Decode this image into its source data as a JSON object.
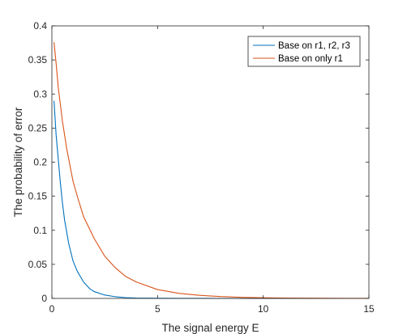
{
  "chart_data": {
    "type": "line",
    "title": "",
    "xlabel": "The signal energy E",
    "ylabel": "The probability of error",
    "xlim": [
      0,
      15
    ],
    "ylim": [
      0,
      0.4
    ],
    "xticks": [
      0,
      5,
      10,
      15
    ],
    "yticks": [
      0,
      0.05,
      0.1,
      0.15,
      0.2,
      0.25,
      0.3,
      0.35,
      0.4
    ],
    "xtick_labels": [
      "0",
      "5",
      "10",
      "15"
    ],
    "ytick_labels": [
      "0",
      "0.05",
      "0.1",
      "0.15",
      "0.2",
      "0.25",
      "0.3",
      "0.35",
      "0.4"
    ],
    "grid": false,
    "legend_position": "top-right",
    "series": [
      {
        "name": "Base on r1, r2, r3",
        "color": "#0072BD",
        "x": [
          0.1,
          0.2,
          0.3,
          0.4,
          0.5,
          0.6,
          0.8,
          1.0,
          1.2,
          1.5,
          1.8,
          2.0,
          2.5,
          3.0,
          3.5,
          4.0,
          5.0,
          6.0,
          8.0,
          10.0,
          12.0,
          15.0
        ],
        "y": [
          0.29,
          0.24,
          0.205,
          0.17,
          0.14,
          0.115,
          0.08,
          0.055,
          0.04,
          0.024,
          0.014,
          0.01,
          0.005,
          0.0025,
          0.0012,
          0.0006,
          0.0002,
          5e-05,
          0.0,
          0.0,
          0.0,
          0.0
        ]
      },
      {
        "name": "Base on only r1",
        "color": "#D95319",
        "x": [
          0.1,
          0.2,
          0.3,
          0.5,
          0.7,
          1.0,
          1.25,
          1.5,
          2.0,
          2.5,
          3.0,
          3.5,
          4.0,
          5.0,
          6.0,
          7.0,
          8.0,
          9.0,
          10.0,
          11.0,
          12.0,
          13.0,
          14.0,
          15.0
        ],
        "y": [
          0.376,
          0.345,
          0.31,
          0.26,
          0.22,
          0.172,
          0.145,
          0.12,
          0.088,
          0.062,
          0.045,
          0.032,
          0.024,
          0.013,
          0.0075,
          0.0045,
          0.0027,
          0.0016,
          0.001,
          0.0006,
          0.0004,
          0.0002,
          0.00015,
          0.0001
        ]
      }
    ]
  }
}
